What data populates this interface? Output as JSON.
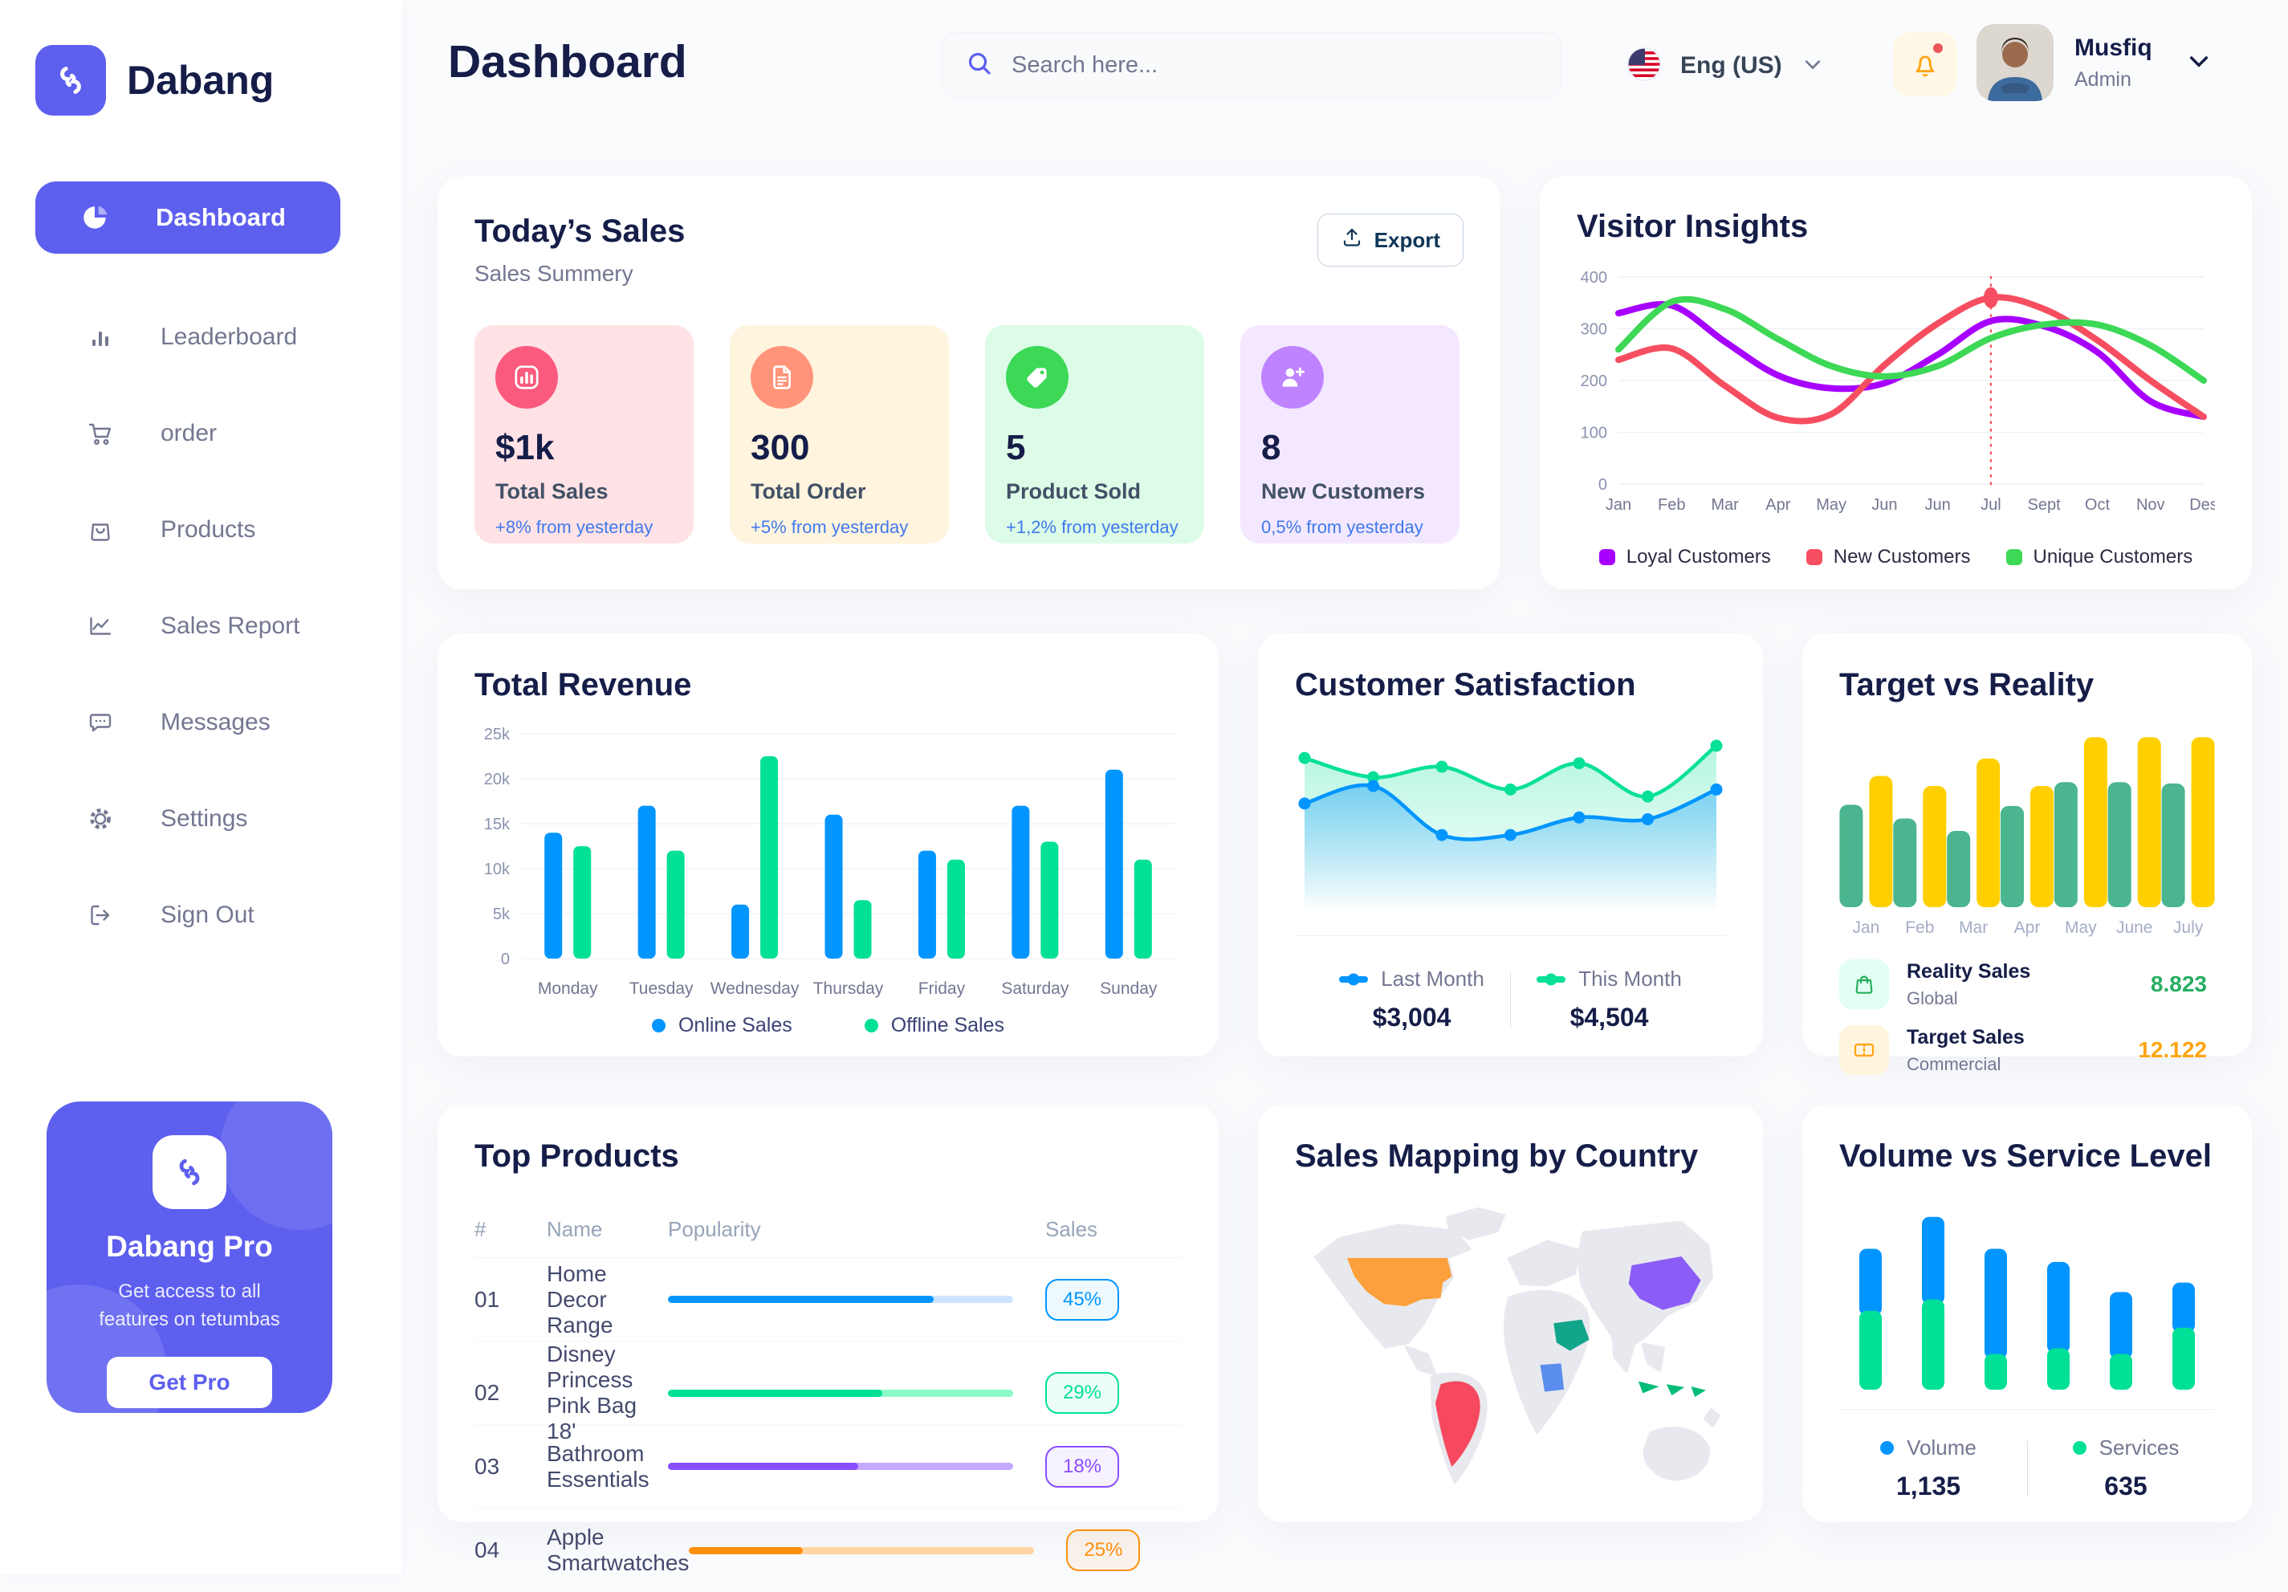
{
  "sidebar": {
    "logo_text": "Dabang",
    "items": [
      {
        "label": "Dashboard",
        "icon": "pie-chart-icon",
        "active": true
      },
      {
        "label": "Leaderboard",
        "icon": "bar-chart-icon",
        "active": false
      },
      {
        "label": "order",
        "icon": "cart-icon",
        "active": false
      },
      {
        "label": "Products",
        "icon": "bag-icon",
        "active": false
      },
      {
        "label": "Sales Report",
        "icon": "line-chart-icon",
        "active": false
      },
      {
        "label": "Messages",
        "icon": "message-icon",
        "active": false
      },
      {
        "label": "Settings",
        "icon": "gear-icon",
        "active": false
      },
      {
        "label": "Sign Out",
        "icon": "sign-out-icon",
        "active": false
      }
    ],
    "pro_card": {
      "title": "Dabang Pro",
      "subtitle": "Get access to all features on tetumbas",
      "button_label": "Get Pro"
    }
  },
  "header": {
    "title": "Dashboard",
    "search_placeholder": "Search here...",
    "language": "Eng (US)",
    "user_name": "Musfiq",
    "user_role": "Admin",
    "accent_color": "#5D5FEF",
    "bell_color": "#FFA412",
    "notification_dot_color": "#EB5757"
  },
  "today_sales": {
    "title": "Today’s Sales",
    "subtitle": "Sales Summery",
    "export_label": "Export",
    "cards": [
      {
        "value": "$1k",
        "label": "Total Sales",
        "delta": "+8% from yesterday",
        "bg": "#FFE2E5",
        "icon_bg": "#FA5A7D",
        "icon": "stats-icon"
      },
      {
        "value": "300",
        "label": "Total Order",
        "delta": "+5% from yesterday",
        "bg": "#FFF4DE",
        "icon_bg": "#FF947A",
        "icon": "order-icon"
      },
      {
        "value": "5",
        "label": "Product Sold",
        "delta": "+1,2% from yesterday",
        "bg": "#DCFCE7",
        "icon_bg": "#3CD856",
        "icon": "tag-icon"
      },
      {
        "value": "8",
        "label": "New Customers",
        "delta": "0,5% from yesterday",
        "bg": "#F3E8FF",
        "icon_bg": "#BF83FF",
        "icon": "new-customer-icon"
      }
    ]
  },
  "chart_data": [
    {
      "id": "visitor_insights",
      "type": "line",
      "title": "Visitor Insights",
      "x": [
        "Jan",
        "Feb",
        "Mar",
        "Apr",
        "May",
        "Jun",
        "Jun",
        "Jul",
        "Sept",
        "Oct",
        "Nov",
        "Des"
      ],
      "ylim": [
        0,
        400
      ],
      "yticks": [
        0,
        100,
        200,
        300,
        400
      ],
      "grid": true,
      "legend_position": "bottom",
      "series": [
        {
          "name": "Loyal Customers",
          "color": "#A700FF",
          "values": [
            330,
            345,
            275,
            210,
            185,
            195,
            250,
            315,
            305,
            255,
            160,
            130
          ]
        },
        {
          "name": "New Customers",
          "color": "#F64E60",
          "values": [
            240,
            262,
            190,
            128,
            135,
            230,
            310,
            360,
            338,
            278,
            200,
            130
          ]
        },
        {
          "name": "Unique Customers",
          "color": "#3CD856",
          "values": [
            260,
            352,
            338,
            280,
            228,
            208,
            228,
            282,
            308,
            308,
            268,
            200
          ]
        }
      ],
      "marker": {
        "series_index": 1,
        "point_index": 7,
        "value": 360
      }
    },
    {
      "id": "total_revenue",
      "type": "bar",
      "title": "Total Revenue",
      "categories": [
        "Monday",
        "Tuesday",
        "Wednesday",
        "Thursday",
        "Friday",
        "Saturday",
        "Sunday"
      ],
      "ylim": [
        0,
        25000
      ],
      "yticks": [
        0,
        5000,
        10000,
        15000,
        20000,
        25000
      ],
      "ytick_labels": [
        "0",
        "5k",
        "10k",
        "15k",
        "20k",
        "25k"
      ],
      "grid": true,
      "legend_position": "bottom",
      "series": [
        {
          "name": "Online Sales",
          "color": "#0095FF",
          "values": [
            14000,
            17000,
            6000,
            16000,
            12000,
            17000,
            21000
          ]
        },
        {
          "name": "Offline Sales",
          "color": "#00E096",
          "values": [
            12500,
            12000,
            22500,
            6500,
            11000,
            13000,
            11000
          ]
        }
      ]
    },
    {
      "id": "customer_satisfaction",
      "type": "area",
      "title": "Customer Satisfaction",
      "ylim": [
        0,
        100
      ],
      "grid": false,
      "legend_position": "bottom",
      "series": [
        {
          "name": "Last Month",
          "total": "$3,004",
          "color": "#0095FF",
          "values": [
            62,
            72,
            44,
            44,
            54,
            53,
            70
          ]
        },
        {
          "name": "This Month",
          "total": "$4,504",
          "color": "#07E098",
          "values": [
            88,
            77,
            83,
            70,
            85,
            66,
            95
          ]
        }
      ]
    },
    {
      "id": "target_vs_reality",
      "type": "bar",
      "title": "Target vs Reality",
      "categories": [
        "Jan",
        "Feb",
        "Mar",
        "Apr",
        "May",
        "June",
        "July"
      ],
      "ylim": [
        0,
        14
      ],
      "grid": false,
      "legend_position": "bottom",
      "series": [
        {
          "name": "Reality Sales",
          "subtitle": "Global",
          "value_label": "8.823",
          "color": "#4AB58E",
          "tile": "#E2FFF3",
          "value_color": "#27AE60",
          "values": [
            8.2,
            7.1,
            6.1,
            8.1,
            10.0,
            10.0,
            9.9
          ]
        },
        {
          "name": "Target Sales",
          "subtitle": "Commercial",
          "value_label": "12.122",
          "color": "#FFCF00",
          "tile": "#FFF4DE",
          "value_color": "#FFA412",
          "values": [
            10.5,
            9.7,
            11.9,
            9.7,
            13.6,
            13.6,
            13.6
          ]
        }
      ]
    },
    {
      "id": "volume_service",
      "type": "stacked-bar",
      "title": "Volume vs Service Level",
      "ylim": [
        0,
        100
      ],
      "grid": false,
      "legend_position": "bottom",
      "series": [
        {
          "name": "Volume",
          "total": "1,135",
          "color": "#0095FF",
          "values": [
            33,
            44,
            56,
            46,
            33,
            24
          ]
        },
        {
          "name": "Services",
          "total": "635",
          "color": "#00E096",
          "values": [
            42,
            48,
            19,
            22,
            19,
            33
          ]
        }
      ]
    }
  ],
  "top_products": {
    "title": "Top Products",
    "columns": [
      "#",
      "Name",
      "Popularity",
      "Sales"
    ],
    "rows": [
      {
        "num": "01",
        "name": "Home Decor Range",
        "popularity": 77,
        "sales": "45%",
        "color": "#0095FF",
        "track": "#CDE4FE"
      },
      {
        "num": "02",
        "name": "Disney Princess Pink Bag 18'",
        "popularity": 62,
        "sales": "29%",
        "color": "#00E096",
        "track": "#8CFAC7"
      },
      {
        "num": "03",
        "name": "Bathroom Essentials",
        "popularity": 55,
        "sales": "18%",
        "color": "#884DFF",
        "track": "#C5A8FF"
      },
      {
        "num": "04",
        "name": "Apple Smartwatches",
        "popularity": 33,
        "sales": "25%",
        "color": "#FF8F0D",
        "track": "#FFD5A4"
      }
    ]
  },
  "sales_map": {
    "title": "Sales Mapping by Country",
    "countries": [
      {
        "name": "United States",
        "color": "#FBA03C"
      },
      {
        "name": "Brazil",
        "color": "#F6495F"
      },
      {
        "name": "Saudi Arabia",
        "color": "#12A58C"
      },
      {
        "name": "DR Congo",
        "color": "#5A8DEE"
      },
      {
        "name": "China",
        "color": "#8B5CF6"
      },
      {
        "name": "Indonesia",
        "color": "#02BC77"
      }
    ]
  }
}
